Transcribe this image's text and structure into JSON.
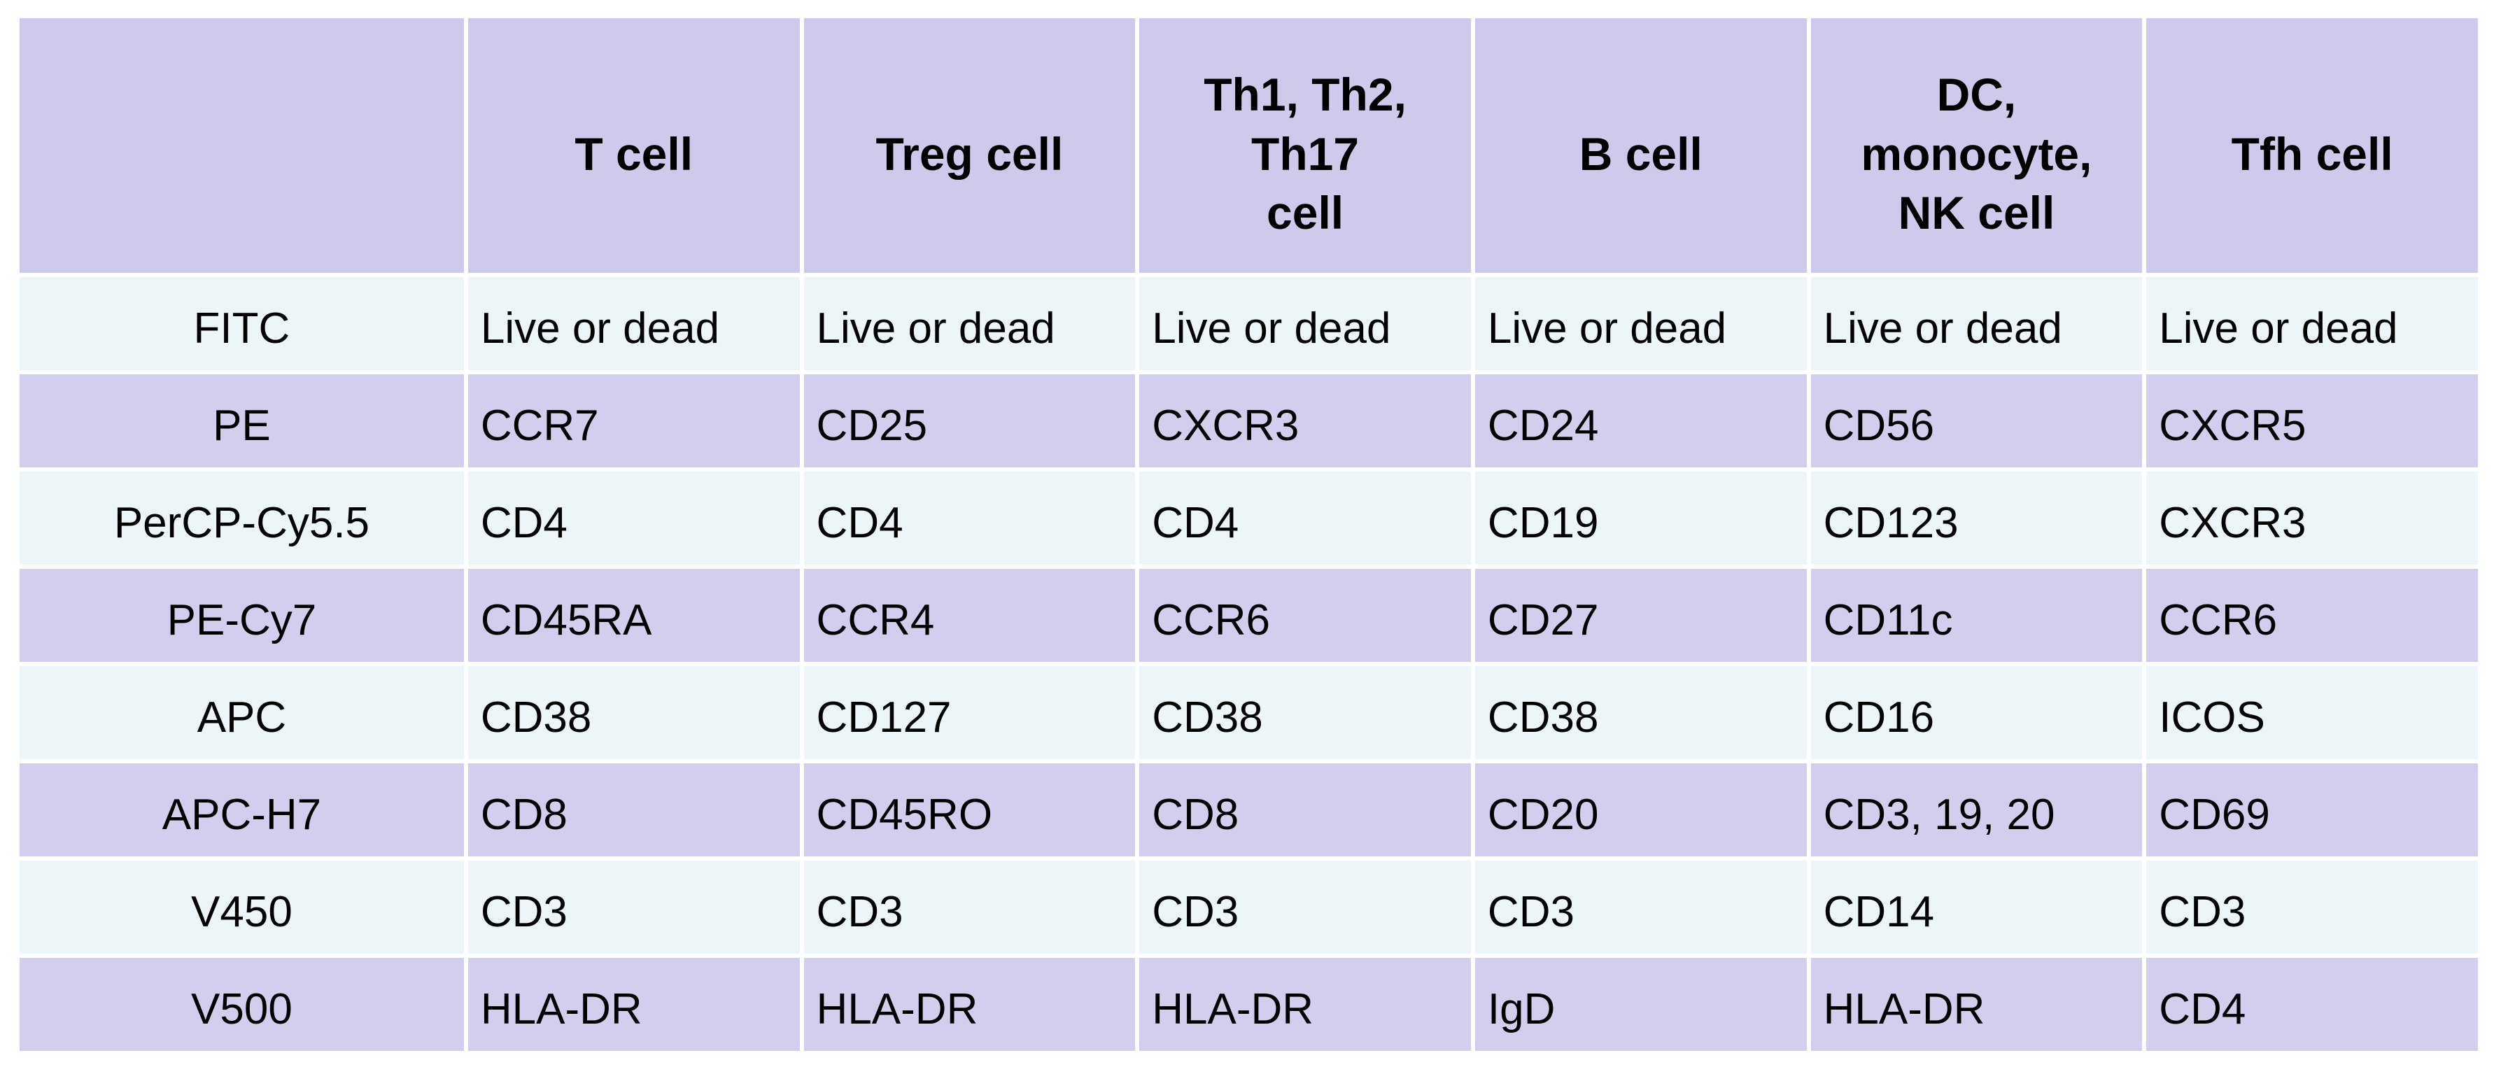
{
  "table": {
    "columns": [
      "",
      "T cell",
      "Treg cell",
      "Th1, Th2, Th17\ncell",
      "B cell",
      "DC, monocyte,\nNK cell",
      "Tfh cell"
    ],
    "rows": [
      {
        "label": "FITC",
        "values": [
          "Live or dead",
          "Live or dead",
          "Live or dead",
          "Live or dead",
          "Live or dead",
          "Live or dead"
        ]
      },
      {
        "label": "PE",
        "values": [
          "CCR7",
          "CD25",
          "CXCR3",
          "CD24",
          "CD56",
          "CXCR5"
        ]
      },
      {
        "label": "PerCP-Cy5.5",
        "values": [
          "CD4",
          "CD4",
          "CD4",
          "CD19",
          "CD123",
          "CXCR3"
        ]
      },
      {
        "label": "PE-Cy7",
        "values": [
          "CD45RA",
          "CCR4",
          "CCR6",
          "CD27",
          "CD11c",
          "CCR6"
        ]
      },
      {
        "label": "APC",
        "values": [
          "CD38",
          "CD127",
          "CD38",
          "CD38",
          "CD16",
          "ICOS"
        ]
      },
      {
        "label": "APC-H7",
        "values": [
          "CD8",
          "CD45RO",
          "CD8",
          "CD20",
          "CD3, 19, 20",
          "CD69"
        ]
      },
      {
        "label": "V450",
        "values": [
          "CD3",
          "CD3",
          "CD3",
          "CD3",
          "CD14",
          "CD3"
        ]
      },
      {
        "label": "V500",
        "values": [
          "HLA-DR",
          "HLA-DR",
          "HLA-DR",
          "IgD",
          "HLA-DR",
          "CD4"
        ]
      }
    ],
    "colors": {
      "header_bg": "#cdcaeb",
      "row_lavender": "#d2cfee",
      "row_light": "#ecf5f8",
      "grid": "#ffffff",
      "text": "#000000"
    }
  }
}
